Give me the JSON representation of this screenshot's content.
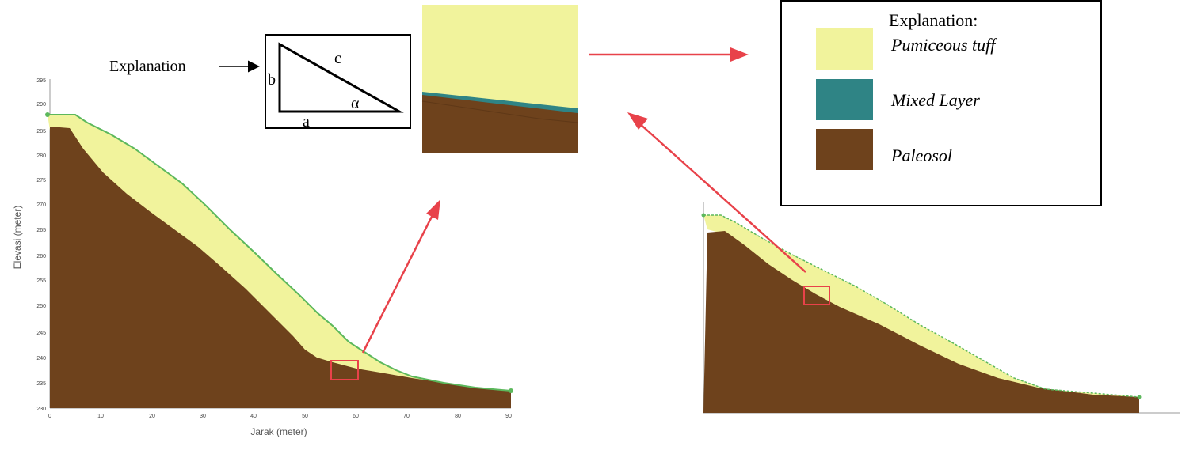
{
  "explanation_label": "Explanation",
  "triangle": {
    "side_a": "a",
    "side_b": "b",
    "side_c": "c",
    "angle": "α"
  },
  "legend": {
    "title": "Explanation:",
    "items": [
      {
        "label": "Pumiceous tuff",
        "color": "#f1f39c"
      },
      {
        "label": "Mixed Layer",
        "color": "#2f8485"
      },
      {
        "label": "Paleosol",
        "color": "#6e421c"
      }
    ]
  },
  "left_profile": {
    "xlabel": "Jarak (meter)",
    "ylabel": "Elevasi (meter)",
    "x_ticks": [
      "0",
      "10",
      "20",
      "30",
      "40",
      "50",
      "60",
      "70",
      "80",
      "90"
    ],
    "y_ticks": [
      "295",
      "290",
      "285",
      "280",
      "275",
      "270",
      "265",
      "260",
      "255",
      "250",
      "245",
      "240",
      "235",
      "230"
    ]
  },
  "colors": {
    "tuff": "#f1f39c",
    "mixed": "#2f8485",
    "paleosol": "#6e421c",
    "surface_line": "#5cb85c",
    "arrow": "#e8424a",
    "highlight": "#e8424a"
  }
}
